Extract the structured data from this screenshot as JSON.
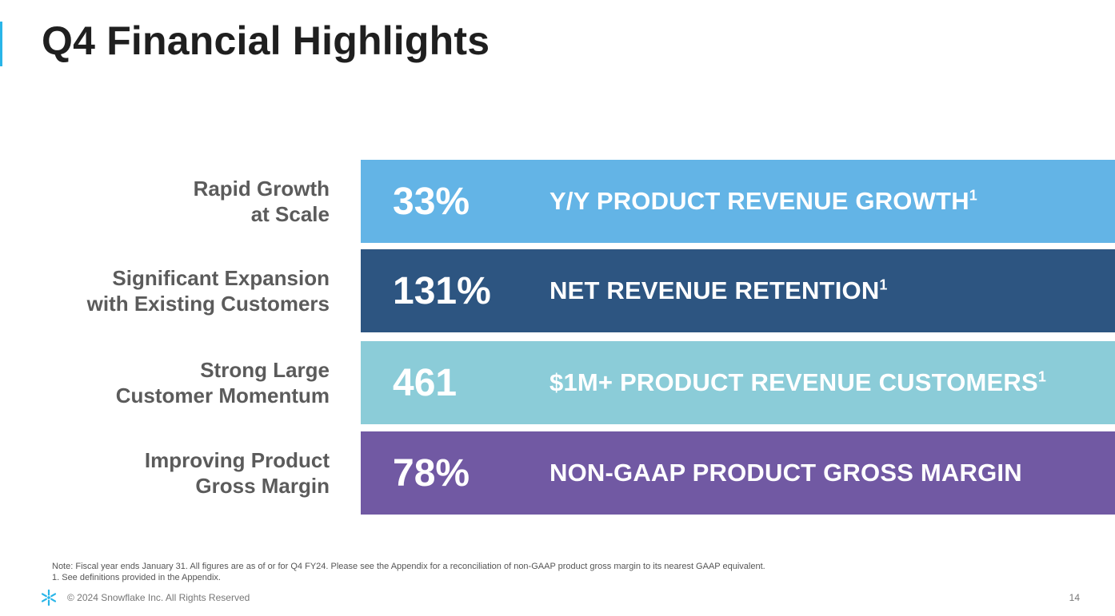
{
  "slide": {
    "title": "Q4 Financial Highlights"
  },
  "rows": [
    {
      "label_line1": "Rapid Growth",
      "label_line2": "at Scale",
      "metric": "33%",
      "description": "Y/Y PRODUCT REVENUE GROWTH",
      "footnote": "1",
      "color": "#63b4e6"
    },
    {
      "label_line1": "Significant Expansion",
      "label_line2": "with Existing Customers",
      "metric": "131%",
      "description": "NET REVENUE RETENTION",
      "footnote": "1",
      "color": "#2d5581"
    },
    {
      "label_line1": "Strong Large",
      "label_line2": "Customer Momentum",
      "metric": "461",
      "description": "$1M+ PRODUCT REVENUE CUSTOMERS",
      "footnote": "1",
      "color": "#8bccd8"
    },
    {
      "label_line1": "Improving Product",
      "label_line2": "Gross Margin",
      "metric": "78%",
      "description": "NON-GAAP PRODUCT GROSS MARGIN",
      "footnote": "",
      "color": "#7159a3"
    }
  ],
  "notes": {
    "line1": "Note: Fiscal year ends January 31. All figures are as of or for Q4 FY24. Please see the Appendix for a reconciliation of non-GAAP product gross margin to its nearest GAAP equivalent.",
    "line2": "1.  See definitions provided in the Appendix."
  },
  "footer": {
    "copyright": "© 2024 Snowflake Inc. All Rights Reserved",
    "page_number": "14",
    "logo_icon": "snowflake-icon",
    "logo_color": "#29b5e8"
  }
}
